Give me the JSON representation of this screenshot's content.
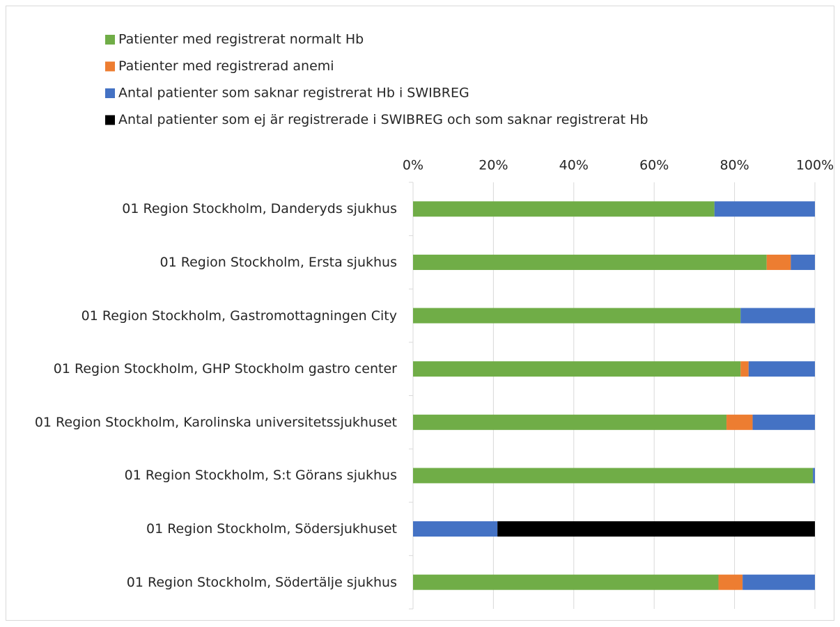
{
  "chart_data": {
    "type": "bar",
    "orientation": "horizontal",
    "stacked": true,
    "categories": [
      "01 Region Stockholm, Danderyds sjukhus",
      "01 Region Stockholm, Ersta sjukhus",
      "01 Region Stockholm, Gastromottagningen City",
      "01 Region Stockholm, GHP Stockholm gastro center",
      "01 Region Stockholm, Karolinska universitetssjukhuset",
      "01 Region Stockholm, S:t Görans sjukhus",
      "01 Region Stockholm, Södersjukhuset",
      "01 Region Stockholm, Södertälje sjukhus"
    ],
    "series": [
      {
        "name": "Patienter med registrerat normalt Hb",
        "color": "#70ad47",
        "values": [
          75,
          88,
          81.5,
          81.5,
          78,
          99.5,
          0,
          76
        ]
      },
      {
        "name": "Patienter med registrerad anemi",
        "color": "#ed7d31",
        "values": [
          0,
          6,
          0,
          2,
          6.5,
          0,
          0,
          6
        ]
      },
      {
        "name": "Antal patienter som saknar registrerat Hb i SWIBREG",
        "color": "#4472c4",
        "values": [
          25,
          6,
          18.5,
          16.5,
          15.5,
          0.5,
          21,
          18
        ]
      },
      {
        "name": "Antal patienter som ej är registrerade i SWIBREG och som saknar registrerat Hb",
        "color": "#000000",
        "values": [
          0,
          0,
          0,
          0,
          0,
          0,
          79,
          0
        ]
      }
    ],
    "xlim": [
      0,
      100
    ],
    "xticks": [
      {
        "value": 0,
        "label": "0%"
      },
      {
        "value": 20,
        "label": "20%"
      },
      {
        "value": 40,
        "label": "40%"
      },
      {
        "value": 60,
        "label": "60%"
      },
      {
        "value": 80,
        "label": "80%"
      },
      {
        "value": 100,
        "label": "100%"
      }
    ],
    "grid": true,
    "legend": "top"
  }
}
